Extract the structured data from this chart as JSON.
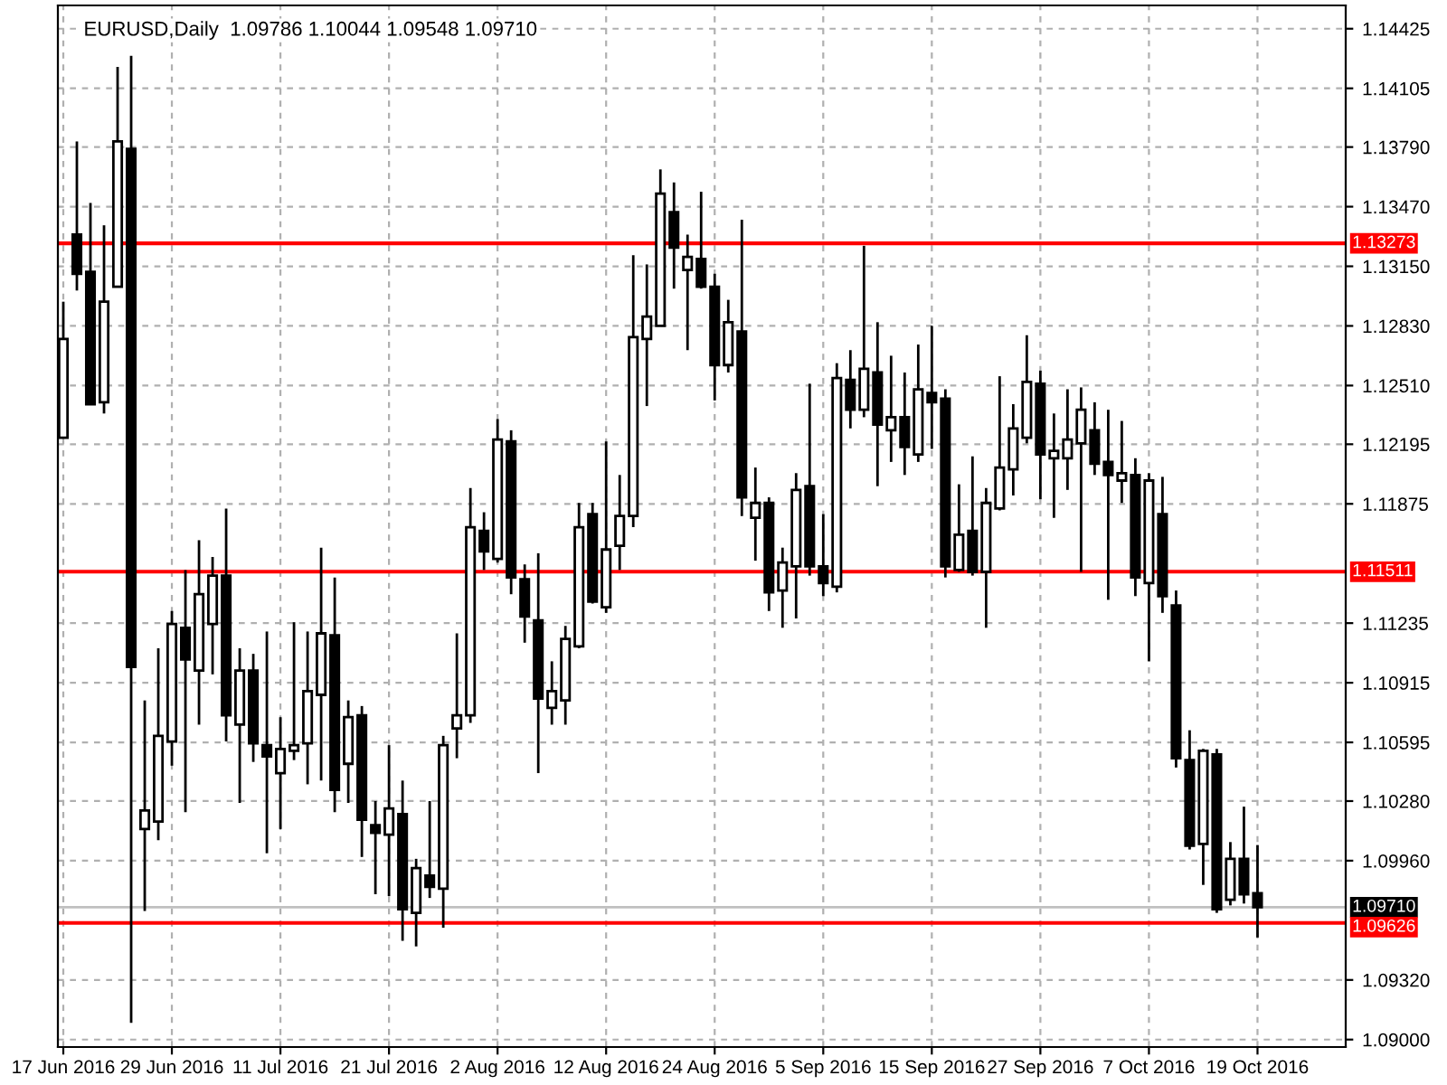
{
  "chart_data": {
    "type": "candlestick",
    "title": "EURUSD,Daily  1.09786 1.10044 1.09548 1.09710",
    "categories": [
      "17 Jun 2016",
      null,
      null,
      null,
      null,
      null,
      null,
      null,
      "29 Jun 2016",
      null,
      null,
      null,
      null,
      null,
      null,
      null,
      "11 Jul 2016",
      null,
      null,
      null,
      null,
      null,
      null,
      null,
      "21 Jul 2016",
      null,
      null,
      null,
      null,
      null,
      null,
      null,
      "2 Aug 2016",
      null,
      null,
      null,
      null,
      null,
      null,
      null,
      "12 Aug 2016",
      null,
      null,
      null,
      null,
      null,
      null,
      null,
      "24 Aug 2016",
      null,
      null,
      null,
      null,
      null,
      null,
      null,
      "5 Sep 2016",
      null,
      null,
      null,
      null,
      null,
      null,
      null,
      "15 Sep 2016",
      null,
      null,
      null,
      null,
      null,
      null,
      null,
      "27 Sep 2016",
      null,
      null,
      null,
      null,
      null,
      null,
      null,
      "7 Oct 2016",
      null,
      null,
      null,
      null,
      null,
      null,
      null,
      "19 Oct 2016"
    ],
    "ohlc": [
      [
        1.1223,
        1.1296,
        1.1223,
        1.1276
      ],
      [
        1.1332,
        1.1382,
        1.1302,
        1.1311
      ],
      [
        1.1312,
        1.1349,
        1.1241,
        1.1241
      ],
      [
        1.1242,
        1.1337,
        1.1236,
        1.1296
      ],
      [
        1.1304,
        1.1422,
        1.1304,
        1.1382
      ],
      [
        1.1378,
        1.1428,
        1.0909,
        1.11
      ],
      [
        1.1013,
        1.1082,
        1.0969,
        1.1023
      ],
      [
        1.1017,
        1.111,
        1.1007,
        1.1063
      ],
      [
        1.106,
        1.113,
        1.1047,
        1.1123
      ],
      [
        1.1121,
        1.1152,
        1.1022,
        1.1104
      ],
      [
        1.1098,
        1.1168,
        1.1069,
        1.1139
      ],
      [
        1.1123,
        1.1159,
        1.1096,
        1.1149
      ],
      [
        1.1149,
        1.1185,
        1.106,
        1.1074
      ],
      [
        1.1069,
        1.111,
        1.1027,
        1.1098
      ],
      [
        1.1098,
        1.1107,
        1.1049,
        1.1059
      ],
      [
        1.1058,
        1.1119,
        1.1,
        1.1052
      ],
      [
        1.1043,
        1.1073,
        1.1013,
        1.1056
      ],
      [
        1.1055,
        1.1124,
        1.105,
        1.1058
      ],
      [
        1.1059,
        1.1119,
        1.1037,
        1.1087
      ],
      [
        1.1085,
        1.1164,
        1.1039,
        1.1118
      ],
      [
        1.1117,
        1.1148,
        1.1022,
        1.1034
      ],
      [
        1.1048,
        1.1082,
        1.1027,
        1.1073
      ],
      [
        1.1074,
        1.1079,
        1.0998,
        1.1018
      ],
      [
        1.1015,
        1.1028,
        1.0978,
        1.1011
      ],
      [
        1.101,
        1.1058,
        1.0977,
        1.1024
      ],
      [
        1.1021,
        1.1039,
        1.0953,
        1.097
      ],
      [
        1.0968,
        1.0997,
        1.095,
        1.0992
      ],
      [
        1.0988,
        1.1028,
        1.0976,
        1.0982
      ],
      [
        1.0981,
        1.1063,
        1.096,
        1.1058
      ],
      [
        1.1067,
        1.1118,
        1.1051,
        1.1074
      ],
      [
        1.1074,
        1.1196,
        1.107,
        1.1175
      ],
      [
        1.1173,
        1.1183,
        1.1152,
        1.1162
      ],
      [
        1.1158,
        1.1233,
        1.1156,
        1.1222
      ],
      [
        1.1221,
        1.1227,
        1.1139,
        1.1148
      ],
      [
        1.1147,
        1.1155,
        1.1113,
        1.1127
      ],
      [
        1.1125,
        1.1161,
        1.1043,
        1.1083
      ],
      [
        1.1078,
        1.1103,
        1.1069,
        1.1087
      ],
      [
        1.1082,
        1.1122,
        1.1069,
        1.1115
      ],
      [
        1.1111,
        1.1188,
        1.111,
        1.1175
      ],
      [
        1.1182,
        1.1188,
        1.1134,
        1.1135
      ],
      [
        1.1132,
        1.1221,
        1.1129,
        1.1163
      ],
      [
        1.1165,
        1.1203,
        1.1152,
        1.1181
      ],
      [
        1.1181,
        1.1321,
        1.1175,
        1.1277
      ],
      [
        1.1276,
        1.1316,
        1.124,
        1.1288
      ],
      [
        1.1283,
        1.1367,
        1.1283,
        1.1354
      ],
      [
        1.1344,
        1.136,
        1.1303,
        1.1325
      ],
      [
        1.1313,
        1.1332,
        1.127,
        1.132
      ],
      [
        1.1319,
        1.1355,
        1.1303,
        1.1304
      ],
      [
        1.1304,
        1.1311,
        1.1243,
        1.1262
      ],
      [
        1.1262,
        1.1297,
        1.1258,
        1.1285
      ],
      [
        1.128,
        1.134,
        1.1181,
        1.1191
      ],
      [
        1.118,
        1.1207,
        1.1157,
        1.1188
      ],
      [
        1.1188,
        1.1191,
        1.113,
        1.114
      ],
      [
        1.1141,
        1.1164,
        1.1121,
        1.1156
      ],
      [
        1.1154,
        1.1204,
        1.1126,
        1.1195
      ],
      [
        1.1197,
        1.1252,
        1.1149,
        1.1154
      ],
      [
        1.1154,
        1.1182,
        1.1138,
        1.1145
      ],
      [
        1.1143,
        1.1263,
        1.114,
        1.1255
      ],
      [
        1.1254,
        1.127,
        1.1228,
        1.1238
      ],
      [
        1.1238,
        1.1326,
        1.1234,
        1.126
      ],
      [
        1.1258,
        1.1285,
        1.1197,
        1.123
      ],
      [
        1.1227,
        1.1267,
        1.121,
        1.1234
      ],
      [
        1.1234,
        1.1258,
        1.1203,
        1.1218
      ],
      [
        1.1214,
        1.1273,
        1.121,
        1.1249
      ],
      [
        1.1247,
        1.1283,
        1.1217,
        1.1242
      ],
      [
        1.1244,
        1.1249,
        1.1148,
        1.1154
      ],
      [
        1.1152,
        1.1198,
        1.1151,
        1.1171
      ],
      [
        1.1173,
        1.1213,
        1.1149,
        1.1151
      ],
      [
        1.1151,
        1.1196,
        1.1121,
        1.1188
      ],
      [
        1.1185,
        1.1256,
        1.1184,
        1.1207
      ],
      [
        1.1206,
        1.1241,
        1.1192,
        1.1228
      ],
      [
        1.1223,
        1.1278,
        1.122,
        1.1253
      ],
      [
        1.1252,
        1.1259,
        1.119,
        1.1214
      ],
      [
        1.1212,
        1.1236,
        1.118,
        1.1216
      ],
      [
        1.1212,
        1.1249,
        1.1195,
        1.1222
      ],
      [
        1.122,
        1.125,
        1.1151,
        1.1238
      ],
      [
        1.1227,
        1.1242,
        1.1203,
        1.1209
      ],
      [
        1.121,
        1.1238,
        1.1136,
        1.1203
      ],
      [
        1.12,
        1.1232,
        1.1188,
        1.1204
      ],
      [
        1.1203,
        1.1212,
        1.1138,
        1.1148
      ],
      [
        1.1145,
        1.1204,
        1.1103,
        1.12
      ],
      [
        1.1182,
        1.1202,
        1.1129,
        1.1138
      ],
      [
        1.1133,
        1.1141,
        1.1046,
        1.1051
      ],
      [
        1.105,
        1.1066,
        1.1002,
        1.1004
      ],
      [
        1.1005,
        1.1056,
        1.0983,
        1.1055
      ],
      [
        1.1053,
        1.1056,
        1.0968,
        1.097
      ],
      [
        1.0975,
        1.1006,
        1.0972,
        1.0997
      ],
      [
        1.0997,
        1.1025,
        1.0973,
        1.0978
      ],
      [
        1.09786,
        1.10044,
        1.09548,
        1.0971
      ]
    ],
    "ylim": [
      1.0896,
      1.1455
    ],
    "yticks": [
      {
        "value": 1.14425,
        "label": "1.14425"
      },
      {
        "value": 1.14105,
        "label": "1.14105"
      },
      {
        "value": 1.1379,
        "label": "1.13790"
      },
      {
        "value": 1.1347,
        "label": "1.13470"
      },
      {
        "value": 1.1315,
        "label": "1.13150"
      },
      {
        "value": 1.1283,
        "label": "1.12830"
      },
      {
        "value": 1.1251,
        "label": "1.12510"
      },
      {
        "value": 1.12195,
        "label": "1.12195"
      },
      {
        "value": 1.11875,
        "label": "1.11875"
      },
      {
        "value": 1.11235,
        "label": "1.11235"
      },
      {
        "value": 1.10915,
        "label": "1.10915"
      },
      {
        "value": 1.10595,
        "label": "1.10595"
      },
      {
        "value": 1.1028,
        "label": "1.10280"
      },
      {
        "value": 1.0996,
        "label": "1.09960"
      },
      {
        "value": 1.0932,
        "label": "1.09320"
      },
      {
        "value": 1.09,
        "label": "1.09000"
      }
    ],
    "ref_lines": [
      {
        "axis": "y",
        "value": 1.13273,
        "label": "1.13273",
        "color": "#ff0000"
      },
      {
        "axis": "y",
        "value": 1.11511,
        "label": "1.11511",
        "color": "#ff0000"
      },
      {
        "axis": "y",
        "value": 1.09626,
        "label": "1.09626",
        "color": "#ff0000"
      },
      {
        "axis": "y",
        "value": 1.0971,
        "label": "1.09710",
        "color": "#c0c0c0"
      }
    ],
    "grid": true
  }
}
